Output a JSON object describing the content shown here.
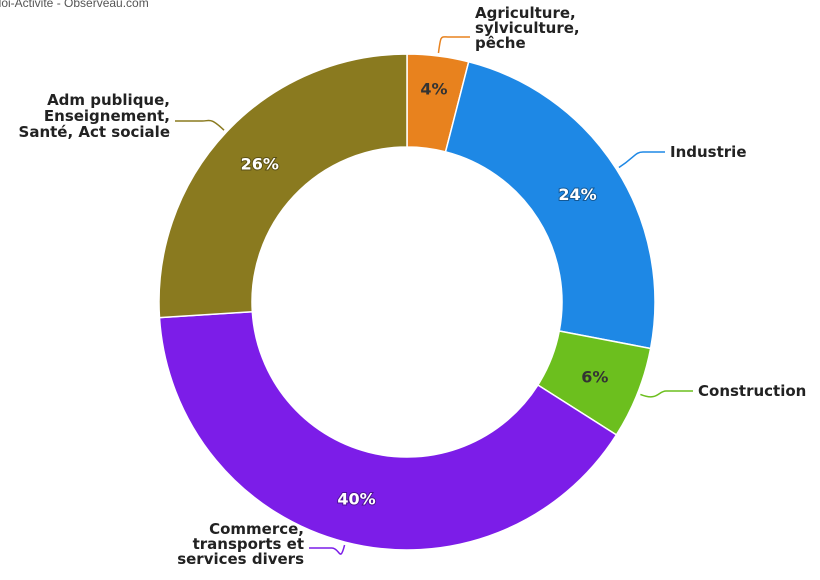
{
  "credit": "ploi-Activité - Observeau.com",
  "chart_data": {
    "type": "pie",
    "donut": true,
    "categories": [
      "Agriculture, sylviculture, pêche",
      "Industrie",
      "Construction",
      "Commerce, transports et services divers",
      "Adm publique, Enseignement, Santé, Act sociale"
    ],
    "values": [
      4,
      24,
      6,
      40,
      26
    ],
    "value_labels": [
      "4%",
      "24%",
      "6%",
      "40%",
      "26%"
    ],
    "label_lines": [
      [
        "Agriculture,",
        "sylviculture,",
        "pêche"
      ],
      [
        "Industrie"
      ],
      [
        "Construction"
      ],
      [
        "Commerce,",
        "transports et",
        "services divers"
      ],
      [
        "Adm publique,",
        "Enseignement,",
        "Santé, Act sociale"
      ]
    ],
    "colors": [
      "#e8821e",
      "#1e88e5",
      "#6cbf1e",
      "#7c1de8",
      "#8a7a1f"
    ]
  }
}
